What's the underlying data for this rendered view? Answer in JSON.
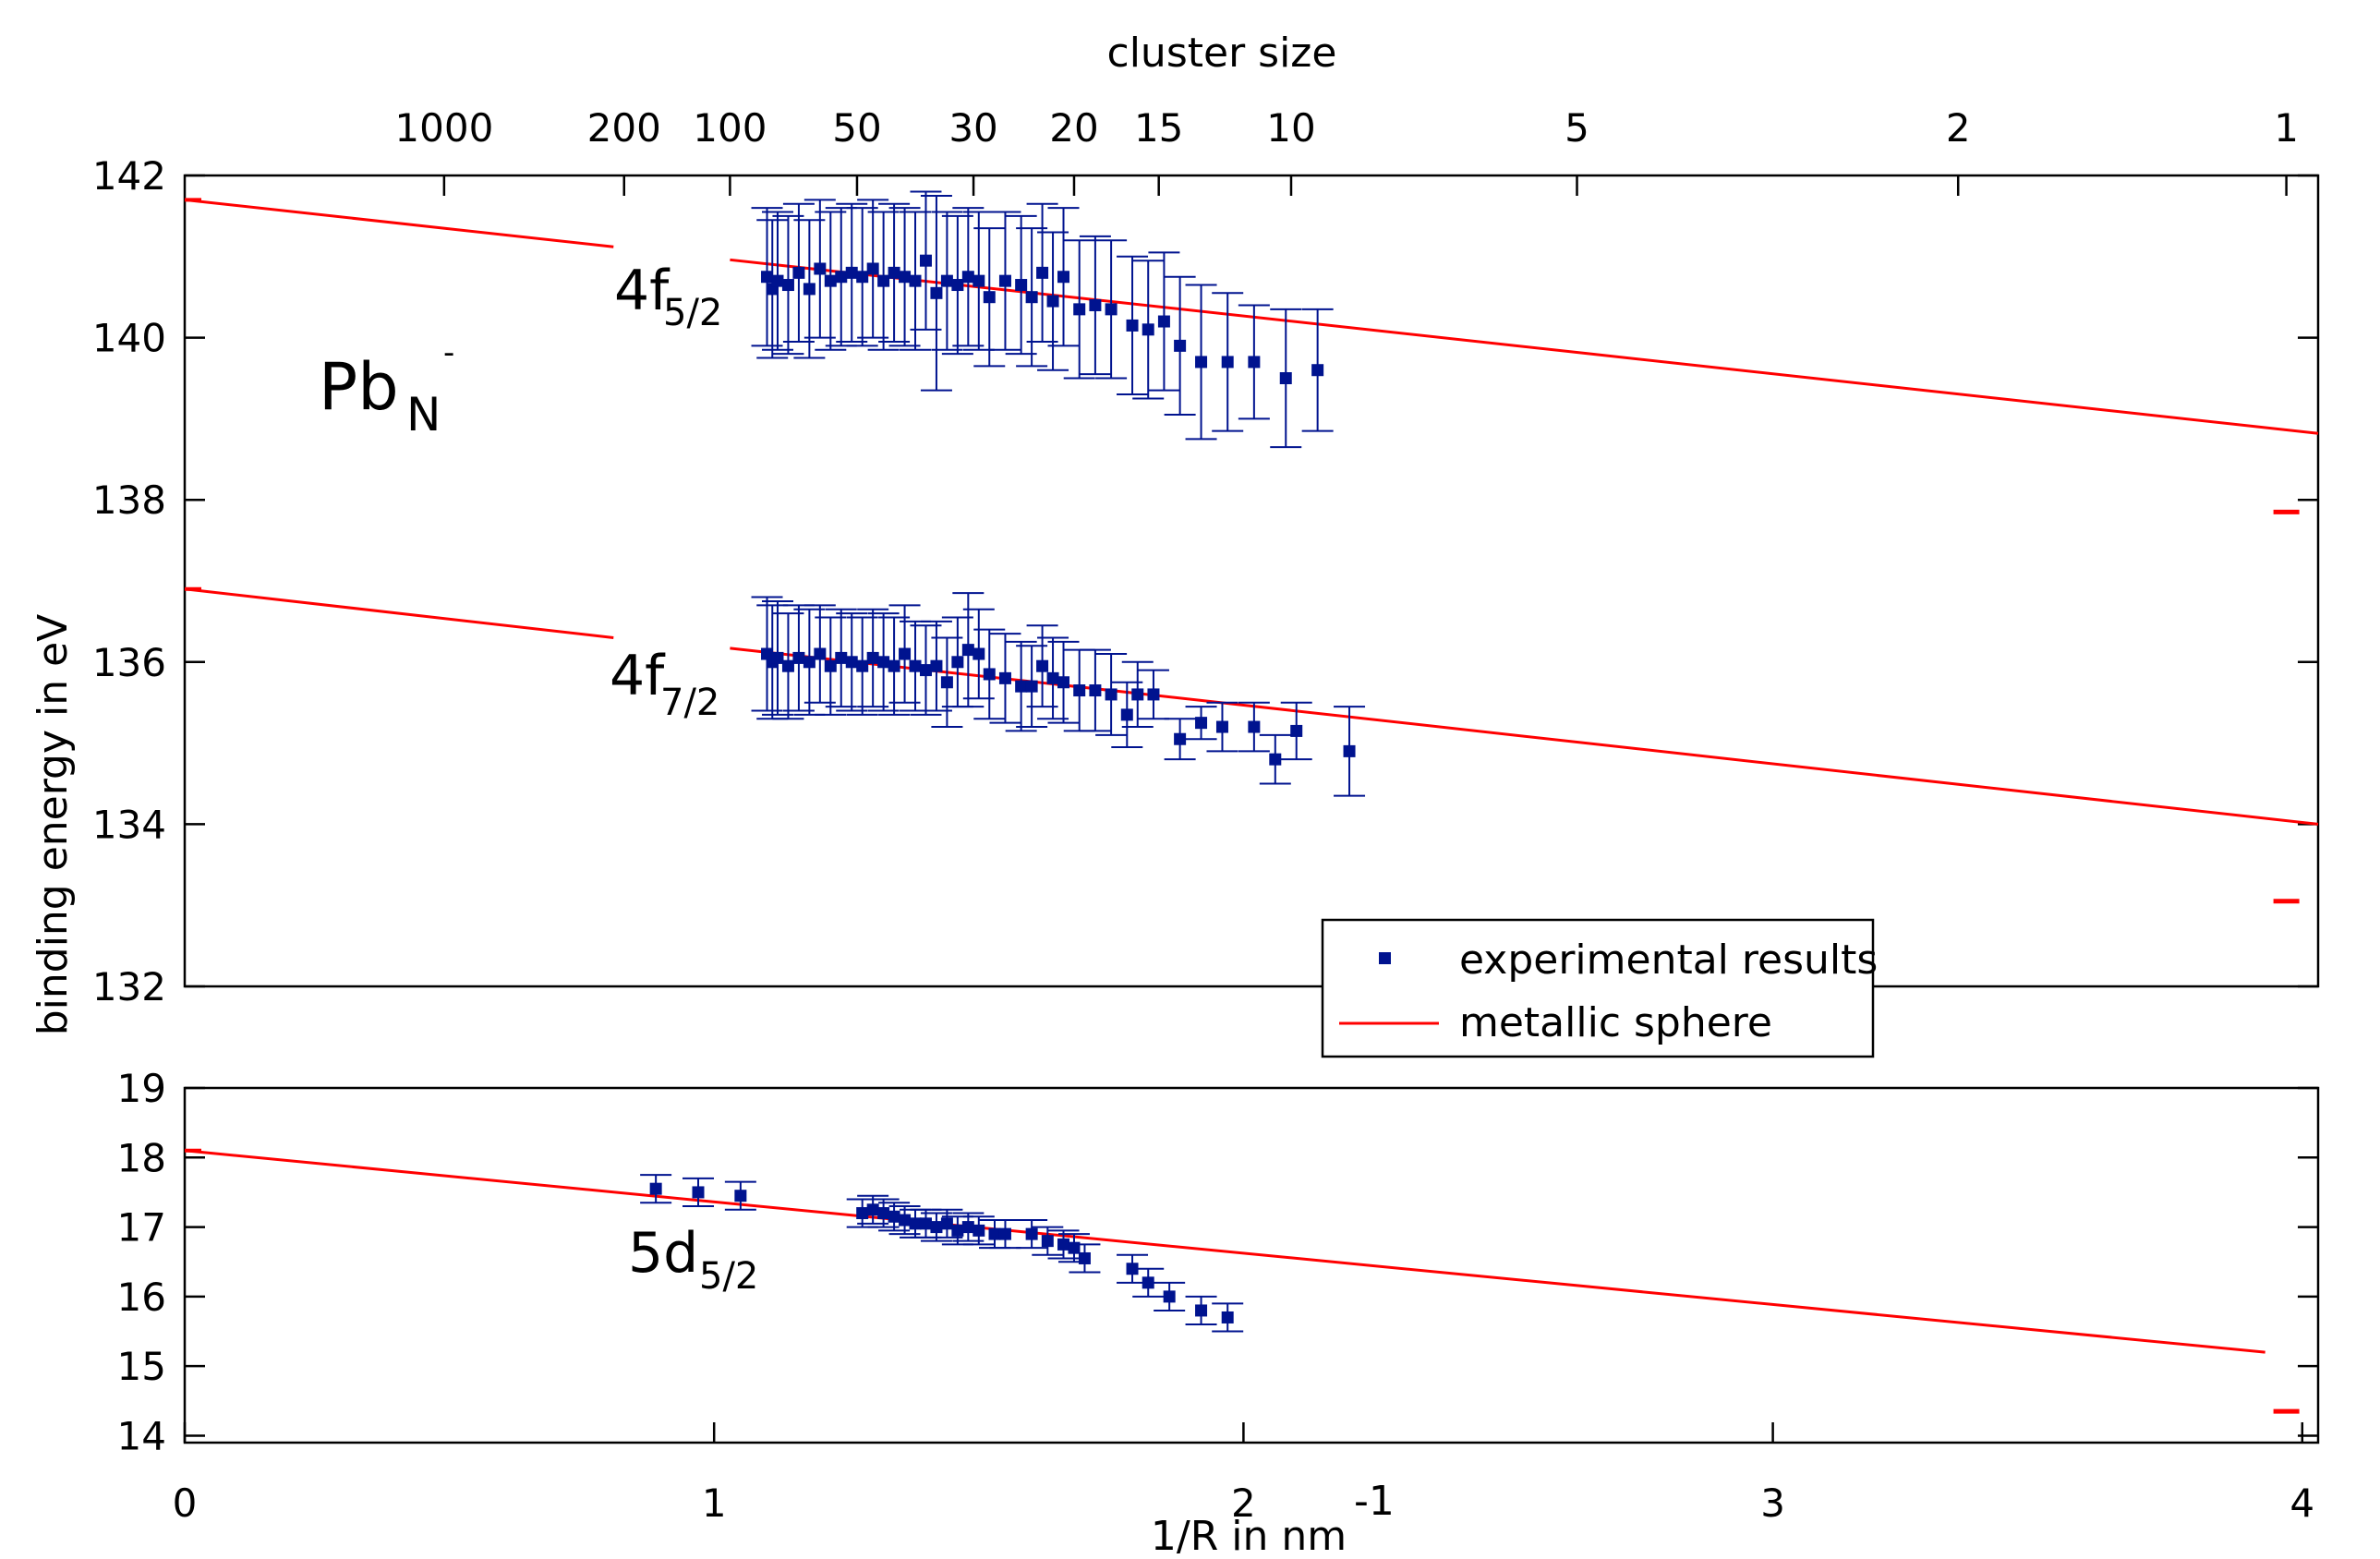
{
  "chart_data": {
    "type": "scatter",
    "xlabel": "1/R in nm",
    "xlabel_exponent": "-1",
    "ylabel": "binding energy in eV",
    "top_axis_label": "cluster size",
    "x_range": [
      0,
      4.03
    ],
    "x_ticks": [
      0,
      1,
      2,
      3,
      4
    ],
    "upper_panel": {
      "ylim": [
        132,
        142
      ],
      "yticks": [
        132,
        134,
        136,
        138,
        140,
        142
      ]
    },
    "lower_panel": {
      "ylim": [
        13.9,
        19
      ],
      "yticks": [
        14,
        15,
        16,
        17,
        18,
        19
      ]
    },
    "cluster_size_ticks": [
      {
        "label": "1000",
        "x": 0.49
      },
      {
        "label": "200",
        "x": 0.83
      },
      {
        "label": "100",
        "x": 1.03
      },
      {
        "label": "50",
        "x": 1.27
      },
      {
        "label": "30",
        "x": 1.49
      },
      {
        "label": "20",
        "x": 1.68
      },
      {
        "label": "15",
        "x": 1.84
      },
      {
        "label": "10",
        "x": 2.09
      },
      {
        "label": "5",
        "x": 2.63
      },
      {
        "label": "2",
        "x": 3.35
      },
      {
        "label": "1",
        "x": 3.97
      }
    ],
    "annotations": {
      "species": {
        "base": "Pb",
        "sub": "N",
        "sup": "-"
      },
      "peak_4f52": {
        "base": "4f",
        "sub": "5/2"
      },
      "peak_4f72": {
        "base": "4f",
        "sub": "7/2"
      },
      "peak_5d52": {
        "base": "5d",
        "sub": "5/2"
      }
    },
    "legend": [
      {
        "name": "experimental results",
        "marker": "square",
        "color": "#00138f"
      },
      {
        "name": "metallic sphere",
        "marker": "line",
        "color": "#ff0000"
      }
    ],
    "legend_position": "lower-right of upper panel",
    "colors": {
      "experimental": "#00138f",
      "theory": "#ff0000"
    },
    "series": [
      {
        "name": "metallic sphere",
        "type": "line",
        "panel": "upper",
        "segments": [
          [
            [
              0,
              141.7
            ],
            [
              0.81,
              141.12
            ]
          ],
          [
            [
              1.03,
              140.96
            ],
            [
              4.03,
              138.82
            ]
          ]
        ],
        "atom_marker": {
          "x": 3.97,
          "y": 137.85
        }
      },
      {
        "name": "metallic sphere",
        "type": "line",
        "panel": "upper",
        "segments": [
          [
            [
              0,
              136.9
            ],
            [
              0.81,
              136.3
            ]
          ],
          [
            [
              1.03,
              136.17
            ],
            [
              4.03,
              134.0
            ]
          ]
        ],
        "atom_marker": {
          "x": 3.97,
          "y": 133.05
        }
      },
      {
        "name": "metallic sphere",
        "type": "line",
        "panel": "lower",
        "segments": [
          [
            [
              0,
              18.1
            ],
            [
              3.93,
              15.2
            ]
          ]
        ],
        "atom_marker": {
          "x": 3.97,
          "y": 14.35
        }
      },
      {
        "name": "experimental results",
        "type": "scatter",
        "panel": "upper",
        "points": [
          {
            "x": 1.1,
            "y": 140.75,
            "err": 0.85
          },
          {
            "x": 1.11,
            "y": 140.6,
            "err": 0.85
          },
          {
            "x": 1.12,
            "y": 140.7,
            "err": 0.85
          },
          {
            "x": 1.14,
            "y": 140.65,
            "err": 0.85
          },
          {
            "x": 1.16,
            "y": 140.8,
            "err": 0.85
          },
          {
            "x": 1.18,
            "y": 140.6,
            "err": 0.85
          },
          {
            "x": 1.2,
            "y": 140.85,
            "err": 0.85
          },
          {
            "x": 1.22,
            "y": 140.7,
            "err": 0.85
          },
          {
            "x": 1.24,
            "y": 140.75,
            "err": 0.85
          },
          {
            "x": 1.26,
            "y": 140.8,
            "err": 0.85
          },
          {
            "x": 1.28,
            "y": 140.75,
            "err": 0.85
          },
          {
            "x": 1.3,
            "y": 140.85,
            "err": 0.85
          },
          {
            "x": 1.32,
            "y": 140.7,
            "err": 0.85
          },
          {
            "x": 1.34,
            "y": 140.8,
            "err": 0.85
          },
          {
            "x": 1.36,
            "y": 140.75,
            "err": 0.85
          },
          {
            "x": 1.38,
            "y": 140.7,
            "err": 0.85
          },
          {
            "x": 1.4,
            "y": 140.95,
            "err": 0.85
          },
          {
            "x": 1.42,
            "y": 140.55,
            "err": 1.2
          },
          {
            "x": 1.44,
            "y": 140.7,
            "err": 0.85
          },
          {
            "x": 1.46,
            "y": 140.65,
            "err": 0.85
          },
          {
            "x": 1.48,
            "y": 140.75,
            "err": 0.85
          },
          {
            "x": 1.5,
            "y": 140.7,
            "err": 0.85
          },
          {
            "x": 1.52,
            "y": 140.5,
            "err": 0.85
          },
          {
            "x": 1.55,
            "y": 140.7,
            "err": 0.85
          },
          {
            "x": 1.58,
            "y": 140.65,
            "err": 0.85
          },
          {
            "x": 1.6,
            "y": 140.5,
            "err": 0.85
          },
          {
            "x": 1.62,
            "y": 140.8,
            "err": 0.85
          },
          {
            "x": 1.64,
            "y": 140.45,
            "err": 0.85
          },
          {
            "x": 1.66,
            "y": 140.75,
            "err": 0.85
          },
          {
            "x": 1.69,
            "y": 140.35,
            "err": 0.85
          },
          {
            "x": 1.72,
            "y": 140.4,
            "err": 0.85
          },
          {
            "x": 1.75,
            "y": 140.35,
            "err": 0.85
          },
          {
            "x": 1.79,
            "y": 140.15,
            "err": 0.85
          },
          {
            "x": 1.82,
            "y": 140.1,
            "err": 0.85
          },
          {
            "x": 1.85,
            "y": 140.2,
            "err": 0.85
          },
          {
            "x": 1.88,
            "y": 139.9,
            "err": 0.85
          },
          {
            "x": 1.92,
            "y": 139.7,
            "err": 0.95
          },
          {
            "x": 1.97,
            "y": 139.7,
            "err": 0.85
          },
          {
            "x": 2.02,
            "y": 139.7,
            "err": 0.7
          },
          {
            "x": 2.08,
            "y": 139.5,
            "err": 0.85
          },
          {
            "x": 2.14,
            "y": 139.6,
            "err": 0.75
          }
        ]
      },
      {
        "name": "experimental results",
        "type": "scatter",
        "panel": "upper",
        "points": [
          {
            "x": 1.1,
            "y": 136.1,
            "err": 0.7
          },
          {
            "x": 1.11,
            "y": 136.0,
            "err": 0.7
          },
          {
            "x": 1.12,
            "y": 136.05,
            "err": 0.7
          },
          {
            "x": 1.14,
            "y": 135.95,
            "err": 0.65
          },
          {
            "x": 1.16,
            "y": 136.05,
            "err": 0.65
          },
          {
            "x": 1.18,
            "y": 136.0,
            "err": 0.65
          },
          {
            "x": 1.2,
            "y": 136.1,
            "err": 0.6
          },
          {
            "x": 1.22,
            "y": 135.95,
            "err": 0.6
          },
          {
            "x": 1.24,
            "y": 136.05,
            "err": 0.6
          },
          {
            "x": 1.26,
            "y": 136.0,
            "err": 0.6
          },
          {
            "x": 1.28,
            "y": 135.95,
            "err": 0.6
          },
          {
            "x": 1.3,
            "y": 136.05,
            "err": 0.6
          },
          {
            "x": 1.32,
            "y": 136.0,
            "err": 0.6
          },
          {
            "x": 1.34,
            "y": 135.95,
            "err": 0.6
          },
          {
            "x": 1.36,
            "y": 136.1,
            "err": 0.6
          },
          {
            "x": 1.38,
            "y": 135.95,
            "err": 0.55
          },
          {
            "x": 1.4,
            "y": 135.9,
            "err": 0.55
          },
          {
            "x": 1.42,
            "y": 135.95,
            "err": 0.55
          },
          {
            "x": 1.44,
            "y": 135.75,
            "err": 0.55
          },
          {
            "x": 1.46,
            "y": 136.0,
            "err": 0.55
          },
          {
            "x": 1.48,
            "y": 136.15,
            "err": 0.7
          },
          {
            "x": 1.5,
            "y": 136.1,
            "err": 0.55
          },
          {
            "x": 1.52,
            "y": 135.85,
            "err": 0.55
          },
          {
            "x": 1.55,
            "y": 135.8,
            "err": 0.55
          },
          {
            "x": 1.58,
            "y": 135.7,
            "err": 0.55
          },
          {
            "x": 1.6,
            "y": 135.7,
            "err": 0.5
          },
          {
            "x": 1.62,
            "y": 135.95,
            "err": 0.5
          },
          {
            "x": 1.64,
            "y": 135.8,
            "err": 0.5
          },
          {
            "x": 1.66,
            "y": 135.75,
            "err": 0.5
          },
          {
            "x": 1.69,
            "y": 135.65,
            "err": 0.5
          },
          {
            "x": 1.72,
            "y": 135.65,
            "err": 0.5
          },
          {
            "x": 1.75,
            "y": 135.6,
            "err": 0.5
          },
          {
            "x": 1.78,
            "y": 135.35,
            "err": 0.4
          },
          {
            "x": 1.8,
            "y": 135.6,
            "err": 0.4
          },
          {
            "x": 1.83,
            "y": 135.6,
            "err": 0.3
          },
          {
            "x": 1.88,
            "y": 135.05,
            "err": 0.25
          },
          {
            "x": 1.92,
            "y": 135.25,
            "err": 0.2
          },
          {
            "x": 1.96,
            "y": 135.2,
            "err": 0.3
          },
          {
            "x": 2.02,
            "y": 135.2,
            "err": 0.3
          },
          {
            "x": 2.06,
            "y": 134.8,
            "err": 0.3
          },
          {
            "x": 2.1,
            "y": 135.15,
            "err": 0.35
          },
          {
            "x": 2.2,
            "y": 134.9,
            "err": 0.55
          }
        ]
      },
      {
        "name": "experimental results",
        "type": "scatter",
        "panel": "lower",
        "points": [
          {
            "x": 0.89,
            "y": 17.55,
            "err": 0.2
          },
          {
            "x": 0.97,
            "y": 17.5,
            "err": 0.2
          },
          {
            "x": 1.05,
            "y": 17.45,
            "err": 0.2
          },
          {
            "x": 1.28,
            "y": 17.2,
            "err": 0.2
          },
          {
            "x": 1.3,
            "y": 17.25,
            "err": 0.2
          },
          {
            "x": 1.32,
            "y": 17.2,
            "err": 0.2
          },
          {
            "x": 1.34,
            "y": 17.15,
            "err": 0.2
          },
          {
            "x": 1.36,
            "y": 17.1,
            "err": 0.2
          },
          {
            "x": 1.38,
            "y": 17.05,
            "err": 0.2
          },
          {
            "x": 1.4,
            "y": 17.05,
            "err": 0.2
          },
          {
            "x": 1.42,
            "y": 17.0,
            "err": 0.2
          },
          {
            "x": 1.44,
            "y": 17.05,
            "err": 0.2
          },
          {
            "x": 1.46,
            "y": 16.95,
            "err": 0.2
          },
          {
            "x": 1.48,
            "y": 17.0,
            "err": 0.2
          },
          {
            "x": 1.5,
            "y": 16.95,
            "err": 0.2
          },
          {
            "x": 1.53,
            "y": 16.9,
            "err": 0.2
          },
          {
            "x": 1.55,
            "y": 16.9,
            "err": 0.2
          },
          {
            "x": 1.6,
            "y": 16.9,
            "err": 0.2
          },
          {
            "x": 1.63,
            "y": 16.8,
            "err": 0.2
          },
          {
            "x": 1.66,
            "y": 16.75,
            "err": 0.2
          },
          {
            "x": 1.68,
            "y": 16.7,
            "err": 0.2
          },
          {
            "x": 1.7,
            "y": 16.55,
            "err": 0.2
          },
          {
            "x": 1.79,
            "y": 16.4,
            "err": 0.2
          },
          {
            "x": 1.82,
            "y": 16.2,
            "err": 0.2
          },
          {
            "x": 1.86,
            "y": 16.0,
            "err": 0.2
          },
          {
            "x": 1.92,
            "y": 15.8,
            "err": 0.2
          },
          {
            "x": 1.97,
            "y": 15.7,
            "err": 0.2
          }
        ]
      }
    ]
  }
}
